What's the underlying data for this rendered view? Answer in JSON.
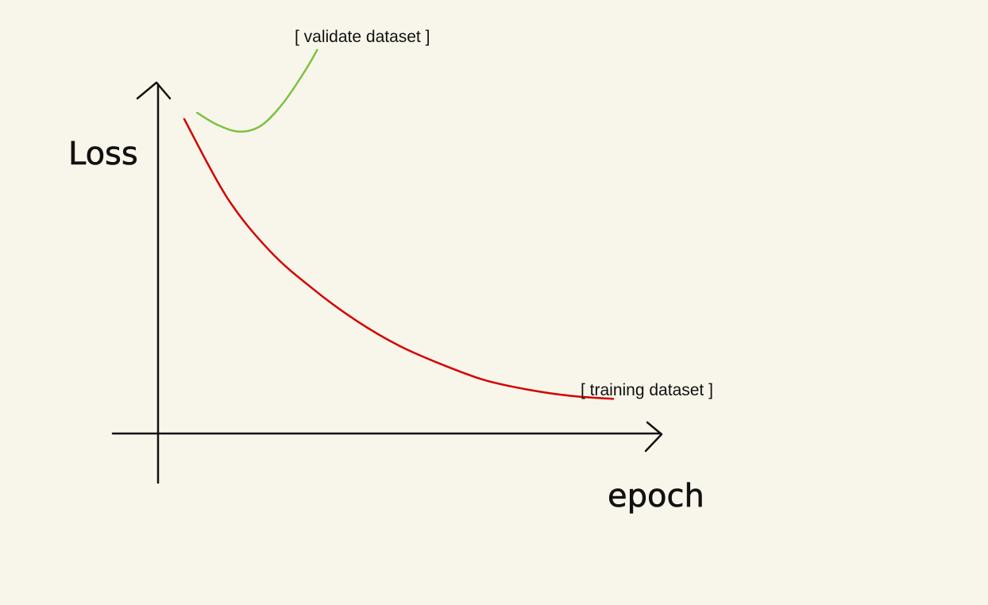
{
  "chart_data": {
    "type": "line",
    "xlabel": "epoch",
    "ylabel": "Loss",
    "grid": false,
    "series": [
      {
        "name": "[ training dataset ]",
        "color": "#d40000",
        "points": [
          [
            0,
            1.0
          ],
          [
            0.1,
            0.75
          ],
          [
            0.2,
            0.58
          ],
          [
            0.3,
            0.46
          ],
          [
            0.4,
            0.36
          ],
          [
            0.5,
            0.28
          ],
          [
            0.6,
            0.22
          ],
          [
            0.7,
            0.17
          ],
          [
            0.8,
            0.14
          ],
          [
            0.9,
            0.12
          ],
          [
            1.0,
            0.11
          ]
        ]
      },
      {
        "name": "[ validate dataset ]",
        "color": "#7cc242",
        "points": [
          [
            0.03,
            1.02
          ],
          [
            0.08,
            0.98
          ],
          [
            0.13,
            0.96
          ],
          [
            0.18,
            0.98
          ],
          [
            0.23,
            1.05
          ],
          [
            0.28,
            1.15
          ],
          [
            0.31,
            1.22
          ]
        ]
      }
    ]
  }
}
